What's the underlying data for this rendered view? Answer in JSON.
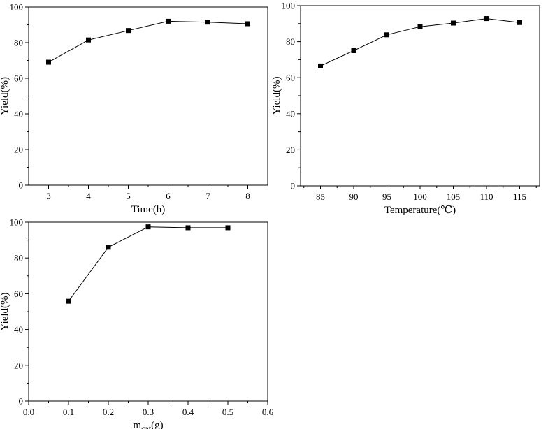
{
  "chart_data": [
    {
      "type": "line",
      "xlabel": "Time(h)",
      "ylabel": "Yield(%)",
      "x": [
        3,
        4,
        5,
        6,
        7,
        8
      ],
      "series": [
        {
          "values": [
            69,
            81.5,
            86.8,
            92,
            91.5,
            90.6
          ]
        }
      ],
      "xlim": [
        2.5,
        8.5
      ],
      "ylim": [
        0,
        100
      ],
      "xticks": [
        3,
        4,
        5,
        6,
        7,
        8
      ],
      "yticks": [
        0,
        20,
        40,
        60,
        80,
        100
      ],
      "grid": false,
      "marker": "square"
    },
    {
      "type": "line",
      "xlabel": "Temperature(℃)",
      "ylabel": "Yield(%)",
      "x": [
        85,
        90,
        95,
        100,
        105,
        110,
        115
      ],
      "series": [
        {
          "values": [
            66.5,
            75,
            83.8,
            88.3,
            90.3,
            92.8,
            90.6
          ]
        }
      ],
      "xlim": [
        82,
        118
      ],
      "ylim": [
        0,
        100
      ],
      "xticks": [
        85,
        90,
        95,
        100,
        105,
        110,
        115
      ],
      "yticks": [
        0,
        20,
        40,
        60,
        80,
        100
      ],
      "grid": false,
      "marker": "square"
    },
    {
      "type": "line",
      "xlabel": "mcat(g)",
      "xlabel_main": "m",
      "xlabel_sub": "cat",
      "xlabel_tail": "(g)",
      "ylabel": "Yield(%)",
      "x": [
        0.1,
        0.2,
        0.3,
        0.4,
        0.5
      ],
      "series": [
        {
          "values": [
            55.8,
            86,
            97.4,
            96.9,
            96.9
          ]
        }
      ],
      "xlim": [
        0,
        0.6
      ],
      "ylim": [
        0,
        100
      ],
      "xticks": [
        "0.0",
        "0.1",
        "0.2",
        "0.3",
        "0.4",
        "0.5",
        "0.6"
      ],
      "yticks": [
        0,
        20,
        40,
        60,
        80,
        100
      ],
      "grid": false,
      "marker": "square"
    }
  ]
}
